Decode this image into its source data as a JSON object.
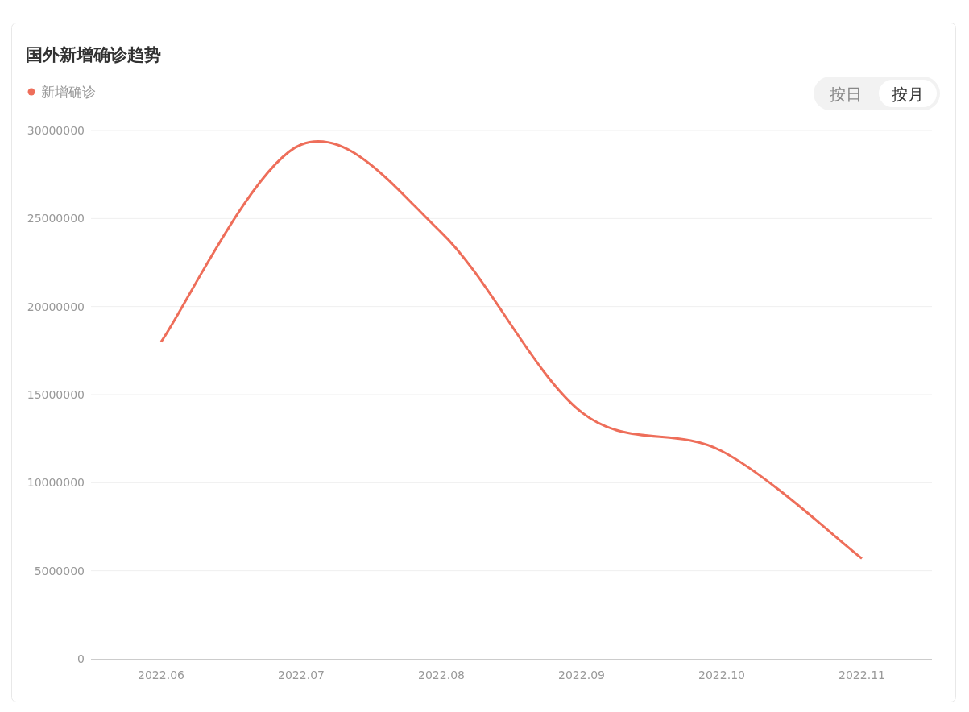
{
  "chart_data": {
    "type": "line",
    "title": "国外新增确诊趋势",
    "categories": [
      "2022.06",
      "2022.07",
      "2022.08",
      "2022.09",
      "2022.10",
      "2022.11"
    ],
    "series": [
      {
        "name": "新增确诊",
        "color": "#ee6e5a",
        "values": [
          18000000,
          29200000,
          24200000,
          14000000,
          11800000,
          5700000
        ]
      }
    ],
    "ylim": [
      0,
      30000000
    ],
    "yticks": [
      0,
      5000000,
      10000000,
      15000000,
      20000000,
      25000000,
      30000000
    ],
    "grid": "y",
    "legend": "top left",
    "marker": "none",
    "annotations": [
      "按日",
      "按月"
    ]
  }
}
